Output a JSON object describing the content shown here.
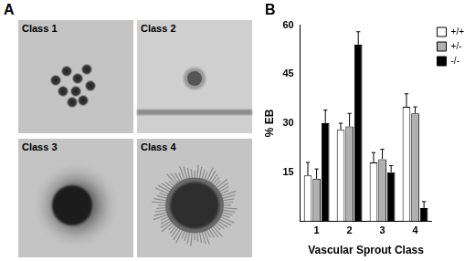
{
  "panel_labels": [
    "A",
    "B"
  ],
  "images": [
    {
      "label": "Class 1"
    },
    {
      "label": "Class 2"
    },
    {
      "label": "Class 3"
    },
    {
      "label": "Class 4"
    }
  ],
  "chart_data": {
    "type": "bar",
    "x_label": "Vascular Sprout Class",
    "y_label": "% EB",
    "categories": [
      "1",
      "2",
      "3",
      "4"
    ],
    "series": [
      {
        "name": "+/+",
        "color": "#ffffff",
        "values": [
          14,
          28,
          18,
          35
        ],
        "errors": [
          4,
          2,
          3,
          4
        ]
      },
      {
        "name": "+/-",
        "color": "#b0b0b0",
        "values": [
          13,
          29,
          19,
          33
        ],
        "errors": [
          3,
          4,
          3,
          2
        ]
      },
      {
        "name": "-/-",
        "color": "#000000",
        "values": [
          30,
          54,
          15,
          4
        ],
        "errors": [
          4,
          4,
          2,
          2
        ]
      }
    ],
    "ylim": [
      0,
      60
    ],
    "yticks": [
      15,
      30,
      45,
      60
    ],
    "grid": false,
    "legend": "upper right"
  }
}
